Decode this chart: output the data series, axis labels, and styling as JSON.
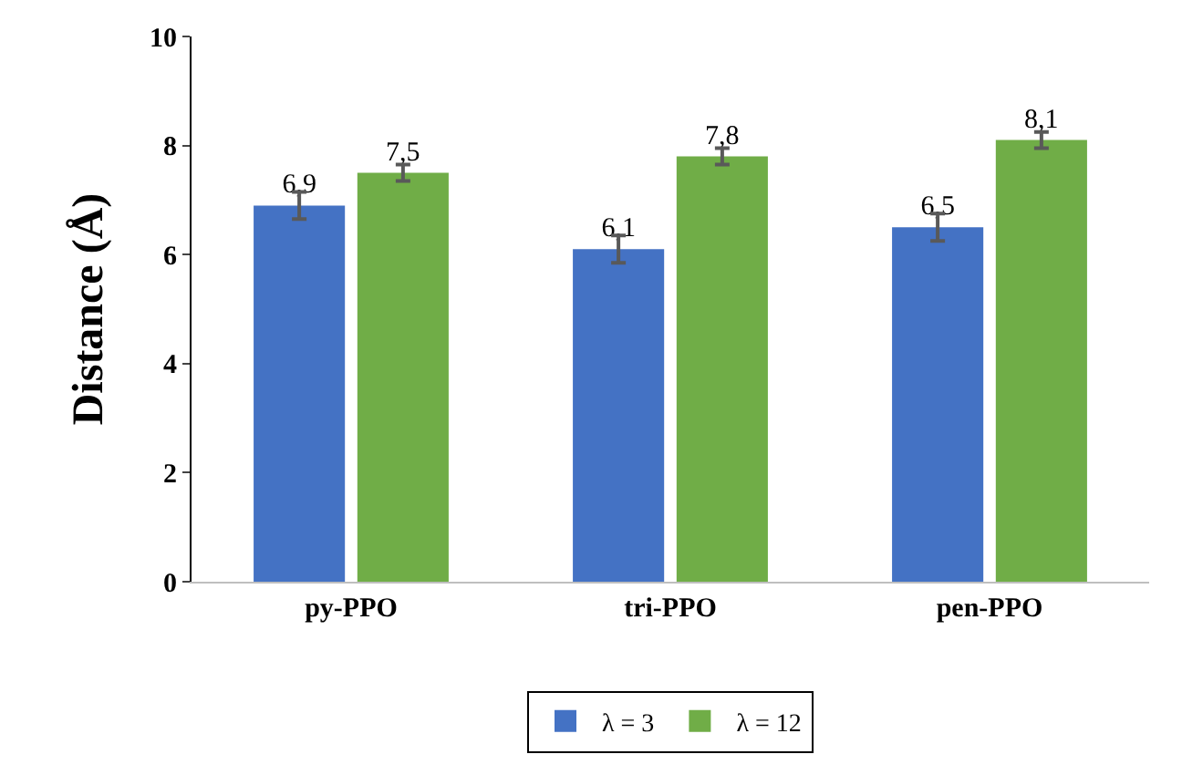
{
  "chart_data": {
    "type": "bar",
    "ylabel": "Distance (Å)",
    "categories": [
      "py-PPO",
      "tri-PPO",
      "pen-PPO"
    ],
    "series": [
      {
        "name": "λ = 3",
        "color": "#4472c4",
        "values": [
          6.9,
          6.1,
          6.5
        ],
        "errors": [
          0.25,
          0.25,
          0.25
        ],
        "value_labels": [
          "6,9",
          "6,1",
          "6,5"
        ]
      },
      {
        "name": "λ = 12",
        "color": "#70ad47",
        "values": [
          7.5,
          7.8,
          8.1
        ],
        "errors": [
          0.15,
          0.15,
          0.15
        ],
        "value_labels": [
          "7,5",
          "7,8",
          "8,1"
        ]
      }
    ],
    "ylim": [
      0,
      10
    ],
    "yticks": [
      0,
      2,
      4,
      6,
      8,
      10
    ],
    "grid": false,
    "legend": "bottom"
  }
}
